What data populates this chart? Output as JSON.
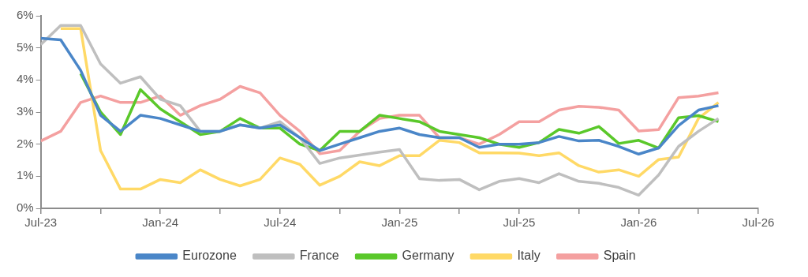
{
  "chart_data": {
    "type": "line",
    "x": [
      "2023-07",
      "2023-08",
      "2023-09",
      "2023-10",
      "2023-11",
      "2023-12",
      "2024-01",
      "2024-02",
      "2024-03",
      "2024-04",
      "2024-05",
      "2024-06",
      "2024-07",
      "2024-08",
      "2024-09",
      "2024-10",
      "2024-11",
      "2024-12",
      "2025-01",
      "2025-02",
      "2025-03",
      "2025-04",
      "2025-05",
      "2025-06",
      "2025-07",
      "2025-08",
      "2025-09",
      "2025-10",
      "2025-11",
      "2025-12",
      "2026-01",
      "2026-02",
      "2026-03",
      "2026-04",
      "2026-05"
    ],
    "series": [
      {
        "name": "Eurozone",
        "color": "#4a86c8",
        "values": [
          5.3,
          5.25,
          4.3,
          2.9,
          2.4,
          2.9,
          2.8,
          2.6,
          2.4,
          2.4,
          2.6,
          2.5,
          2.6,
          2.2,
          1.8,
          2.0,
          2.2,
          2.4,
          2.5,
          2.3,
          2.2,
          2.2,
          1.9,
          2.0,
          2.0,
          2.05,
          2.24,
          2.1,
          2.12,
          1.93,
          1.69,
          1.88,
          2.58,
          3.06,
          3.2
        ]
      },
      {
        "name": "France",
        "color": "#bfbfbf",
        "values": [
          5.1,
          5.7,
          5.7,
          4.5,
          3.9,
          4.1,
          3.4,
          3.2,
          2.4,
          2.4,
          2.6,
          2.5,
          2.7,
          2.2,
          1.4,
          1.57,
          1.66,
          1.75,
          1.83,
          0.92,
          0.87,
          0.9,
          0.58,
          0.84,
          0.93,
          0.8,
          1.08,
          0.84,
          0.78,
          0.65,
          0.41,
          1.04,
          1.93,
          2.4,
          2.8
        ]
      },
      {
        "name": "Germany",
        "color": "#5ac82a",
        "values": [
          null,
          null,
          4.2,
          3.0,
          2.3,
          3.7,
          3.1,
          2.7,
          2.3,
          2.4,
          2.8,
          2.5,
          2.5,
          2.0,
          1.8,
          2.4,
          2.4,
          2.9,
          2.8,
          2.7,
          2.4,
          2.3,
          2.2,
          2.0,
          1.9,
          2.05,
          2.46,
          2.34,
          2.55,
          2.02,
          2.12,
          1.88,
          2.82,
          2.89,
          2.7
        ]
      },
      {
        "name": "Italy",
        "color": "#ffd966",
        "values": [
          null,
          5.6,
          5.6,
          1.8,
          0.6,
          0.6,
          0.9,
          0.8,
          1.2,
          0.9,
          0.7,
          0.9,
          1.57,
          1.37,
          0.72,
          1.0,
          1.45,
          1.33,
          1.64,
          1.64,
          2.12,
          2.05,
          1.73,
          1.73,
          1.72,
          1.64,
          1.73,
          1.33,
          1.13,
          1.2,
          1.0,
          1.52,
          1.6,
          2.8,
          3.3
        ]
      },
      {
        "name": "Spain",
        "color": "#f4a0a0",
        "values": [
          2.1,
          2.4,
          3.3,
          3.5,
          3.3,
          3.3,
          3.5,
          2.9,
          3.2,
          3.4,
          3.8,
          3.6,
          2.9,
          2.4,
          1.7,
          1.8,
          2.4,
          2.8,
          2.9,
          2.9,
          2.2,
          2.2,
          2.0,
          2.3,
          2.7,
          2.7,
          3.06,
          3.18,
          3.15,
          3.06,
          2.41,
          2.45,
          3.45,
          3.5,
          3.6
        ]
      }
    ],
    "xlim": [
      "2023-07",
      "2026-07"
    ],
    "xticks": [
      {
        "value": "2023-07",
        "label": "Jul-23"
      },
      {
        "value": "2023-10",
        "label": null
      },
      {
        "value": "2024-01",
        "label": "Jan-24"
      },
      {
        "value": "2024-04",
        "label": null
      },
      {
        "value": "2024-07",
        "label": "Jul-24"
      },
      {
        "value": "2024-10",
        "label": null
      },
      {
        "value": "2025-01",
        "label": "Jan-25"
      },
      {
        "value": "2025-04",
        "label": null
      },
      {
        "value": "2025-07",
        "label": "Jul-25"
      },
      {
        "value": "2025-10",
        "label": null
      },
      {
        "value": "2026-01",
        "label": "Jan-26"
      },
      {
        "value": "2026-04",
        "label": null
      },
      {
        "value": "2026-07",
        "label": "Jul-26"
      }
    ],
    "ylim": [
      0,
      6
    ],
    "yticks": [
      {
        "value": 0,
        "label": "0%"
      },
      {
        "value": 1,
        "label": "1%"
      },
      {
        "value": 2,
        "label": "2%"
      },
      {
        "value": 3,
        "label": "3%"
      },
      {
        "value": 4,
        "label": "4%"
      },
      {
        "value": 5,
        "label": "5%"
      },
      {
        "value": 6,
        "label": "6%"
      }
    ],
    "grid": false,
    "legend": "bottom",
    "marker": "none",
    "line_style": "solid"
  }
}
